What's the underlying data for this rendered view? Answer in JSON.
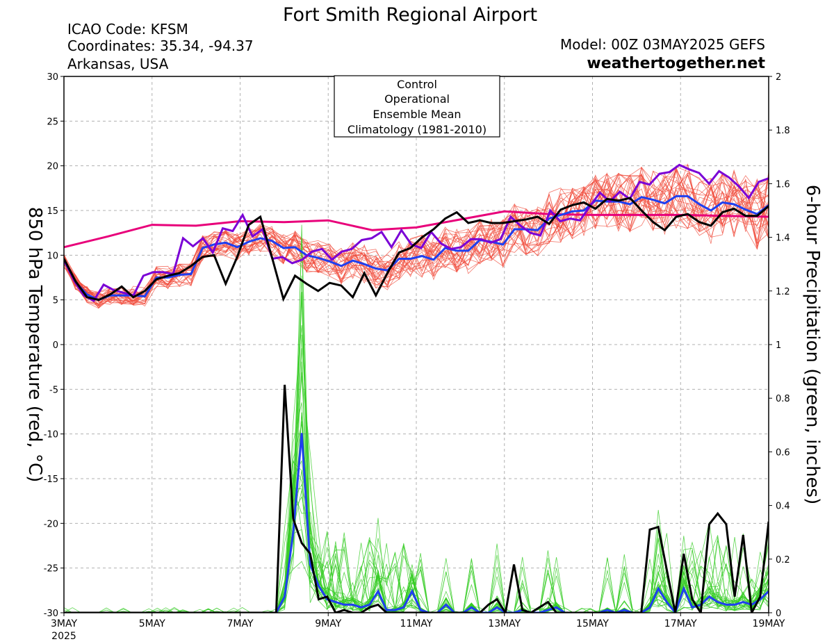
{
  "header": {
    "title": "Fort Smith Regional Airport",
    "icao": "ICAO Code: KFSM",
    "coords": "Coordinates: 35.34, -94.37",
    "region": "Arkansas, USA",
    "model": "Model: 00Z 03MAY2025 GEFS",
    "site": "weathertogether.net"
  },
  "legend": {
    "control": "Control",
    "operational": "Operational",
    "mean": "Ensemble Mean",
    "climo": "Climatology (1981-2010)"
  },
  "colors": {
    "control": "#000000",
    "operational": "#7a00d6",
    "mean": "#1f3ff0",
    "climo": "#e8007a",
    "members_temp": "#f04a3a",
    "members_precip": "#33cc22",
    "site": "#1aa3f0"
  },
  "chart_data": {
    "type": "line",
    "ylabel": "850 hPa Temperature (red, °C)",
    "y2label": "6-hour Precipitation (green, inches)",
    "ylim": [
      -30,
      30
    ],
    "y2lim": [
      0,
      2
    ],
    "yticks": [
      30,
      25,
      20,
      15,
      10,
      5,
      0,
      -5,
      -10,
      -15,
      -20,
      -25,
      -30
    ],
    "y2ticks": [
      2,
      1.8,
      1.6,
      1.4,
      1.2,
      1,
      0.8,
      0.6,
      0.4,
      0.2,
      0
    ],
    "xlim": [
      0,
      16
    ],
    "xticks": [
      {
        "x": 0,
        "label": "3MAY",
        "sub": "2025"
      },
      {
        "x": 2,
        "label": "5MAY"
      },
      {
        "x": 4,
        "label": "7MAY"
      },
      {
        "x": 6,
        "label": "9MAY"
      },
      {
        "x": 8,
        "label": "11MAY"
      },
      {
        "x": 10,
        "label": "13MAY"
      },
      {
        "x": 12,
        "label": "15MAY"
      },
      {
        "x": 14,
        "label": "17MAY"
      },
      {
        "x": 16,
        "label": "19MAY"
      }
    ],
    "grid": true,
    "climatology": {
      "x": [
        0,
        1,
        2,
        3,
        4,
        5,
        6,
        7,
        8,
        9,
        10,
        11,
        12,
        13,
        14,
        15,
        16
      ],
      "y": [
        10.9,
        12.1,
        13.4,
        13.3,
        13.8,
        13.7,
        13.9,
        12.8,
        13.1,
        14.0,
        14.9,
        14.6,
        14.5,
        14.5,
        14.5,
        14.4,
        14.3
      ]
    },
    "temp_control": [
      9.6,
      7.1,
      5.3,
      5.0,
      5.6,
      6.5,
      5.3,
      6.0,
      7.3,
      7.7,
      8.0,
      8.8,
      9.8,
      10.0,
      6.8,
      9.8,
      13.4,
      14.3,
      9.8,
      5.1,
      7.7,
      6.8,
      6.0,
      6.9,
      6.6,
      5.3,
      8.0,
      5.5,
      8.0,
      10.3,
      10.8,
      12.0,
      12.9,
      14.1,
      14.8,
      13.6,
      13.9,
      13.6,
      13.6,
      13.8,
      14.0,
      14.3,
      13.5,
      15.1,
      15.6,
      15.9,
      15.2,
      16.3,
      16.1,
      16.4,
      15.0,
      13.7,
      12.8,
      14.3,
      14.6,
      13.7,
      13.3,
      14.8,
      15.2,
      14.4,
      14.4,
      15.5
    ],
    "temp_operational": [
      9.5,
      7.2,
      5.5,
      4.9,
      6.7,
      6.1,
      5.8,
      5.5,
      7.7,
      8.1,
      8.1,
      7.9,
      11.9,
      11.0,
      11.9,
      10.3,
      13.0,
      12.7,
      14.5,
      12.1,
      12.9,
      9.6,
      9.8,
      9.1,
      9.5,
      10.4,
      10.7,
      9.5,
      10.4,
      10.7,
      11.7,
      11.9,
      12.6,
      10.9,
      12.8,
      11.2,
      10.8,
      12.6,
      11.3,
      10.7,
      10.9,
      11.8,
      11.8,
      11.4,
      11.8,
      14.3,
      13.3,
      12.5,
      12.2,
      15.0,
      13.8,
      14.1,
      13.9,
      15.5,
      17.0,
      16.0,
      17.1,
      16.3,
      18.2,
      17.9,
      19.1,
      19.3,
      20.1,
      19.6,
      19.2,
      18.0,
      19.4,
      18.7,
      17.7,
      16.4,
      18.2,
      18.6
    ],
    "temp_mean": [
      9.4,
      7.0,
      5.6,
      5.0,
      5.5,
      5.5,
      5.5,
      5.4,
      7.5,
      7.5,
      7.8,
      7.9,
      10.8,
      11.2,
      11.4,
      10.9,
      11.5,
      11.9,
      11.6,
      10.8,
      10.9,
      10.0,
      9.7,
      9.3,
      8.8,
      9.4,
      9.0,
      8.5,
      8.3,
      9.6,
      9.6,
      9.9,
      9.5,
      10.8,
      10.5,
      10.5,
      11.7,
      11.5,
      11.2,
      12.9,
      12.9,
      12.8,
      14.1,
      14.5,
      14.9,
      15.0,
      16.1,
      16.0,
      16.0,
      15.7,
      16.5,
      16.2,
      15.8,
      16.6,
      16.6,
      15.7,
      15.0,
      15.9,
      15.7,
      15.1,
      14.6,
      15.6
    ],
    "precip_control": [
      0.0,
      0.0,
      0.0,
      0.0,
      0.0,
      0.0,
      0.0,
      0.0,
      0.0,
      0.0,
      0.0,
      0.0,
      0.0,
      0.0,
      0.0,
      0.0,
      0.0,
      0.0,
      0.0,
      0.0,
      0.0,
      0.0,
      0.0,
      0.0,
      0.0,
      0.0,
      0.85,
      0.35,
      0.26,
      0.22,
      0.05,
      0.06,
      0.0,
      0.01,
      0.0,
      0.0,
      0.02,
      0.03,
      0.0,
      0.0,
      0.0,
      0.0,
      0.0,
      0.0,
      0.0,
      0.0,
      0.0,
      0.0,
      0.0,
      0.0,
      0.03,
      0.05,
      0.0,
      0.18,
      0.01,
      0.0,
      0.02,
      0.04,
      0.0,
      0.0,
      0.0,
      0.0,
      0.0,
      0.0,
      0.0,
      0.0,
      0.0,
      0.0,
      0.0,
      0.31,
      0.32,
      0.16,
      0.0,
      0.22,
      0.05,
      0.0,
      0.33,
      0.37,
      0.33,
      0.06,
      0.29,
      0.0,
      0.06,
      0.34
    ],
    "precip_mean": [
      0.0,
      0.0,
      0.0,
      0.0,
      0.0,
      0.0,
      0.0,
      0.0,
      0.0,
      0.0,
      0.0,
      0.0,
      0.0,
      0.0,
      0.0,
      0.0,
      0.0,
      0.0,
      0.0,
      0.0,
      0.0,
      0.0,
      0.0,
      0.0,
      0.0,
      0.0,
      0.06,
      0.3,
      0.67,
      0.18,
      0.1,
      0.05,
      0.04,
      0.03,
      0.03,
      0.02,
      0.03,
      0.08,
      0.01,
      0.01,
      0.02,
      0.08,
      0.01,
      0.0,
      0.0,
      0.03,
      0.0,
      0.0,
      0.02,
      0.0,
      0.0,
      0.02,
      0.0,
      0.0,
      0.01,
      0.0,
      0.0,
      0.01,
      0.02,
      0.0,
      0.0,
      0.0,
      0.0,
      0.0,
      0.01,
      0.0,
      0.01,
      0.0,
      0.0,
      0.02,
      0.09,
      0.04,
      0.0,
      0.09,
      0.02,
      0.03,
      0.06,
      0.04,
      0.03,
      0.03,
      0.04,
      0.03,
      0.05,
      0.08
    ],
    "temp_member_count": 30,
    "precip_member_count": 30
  }
}
